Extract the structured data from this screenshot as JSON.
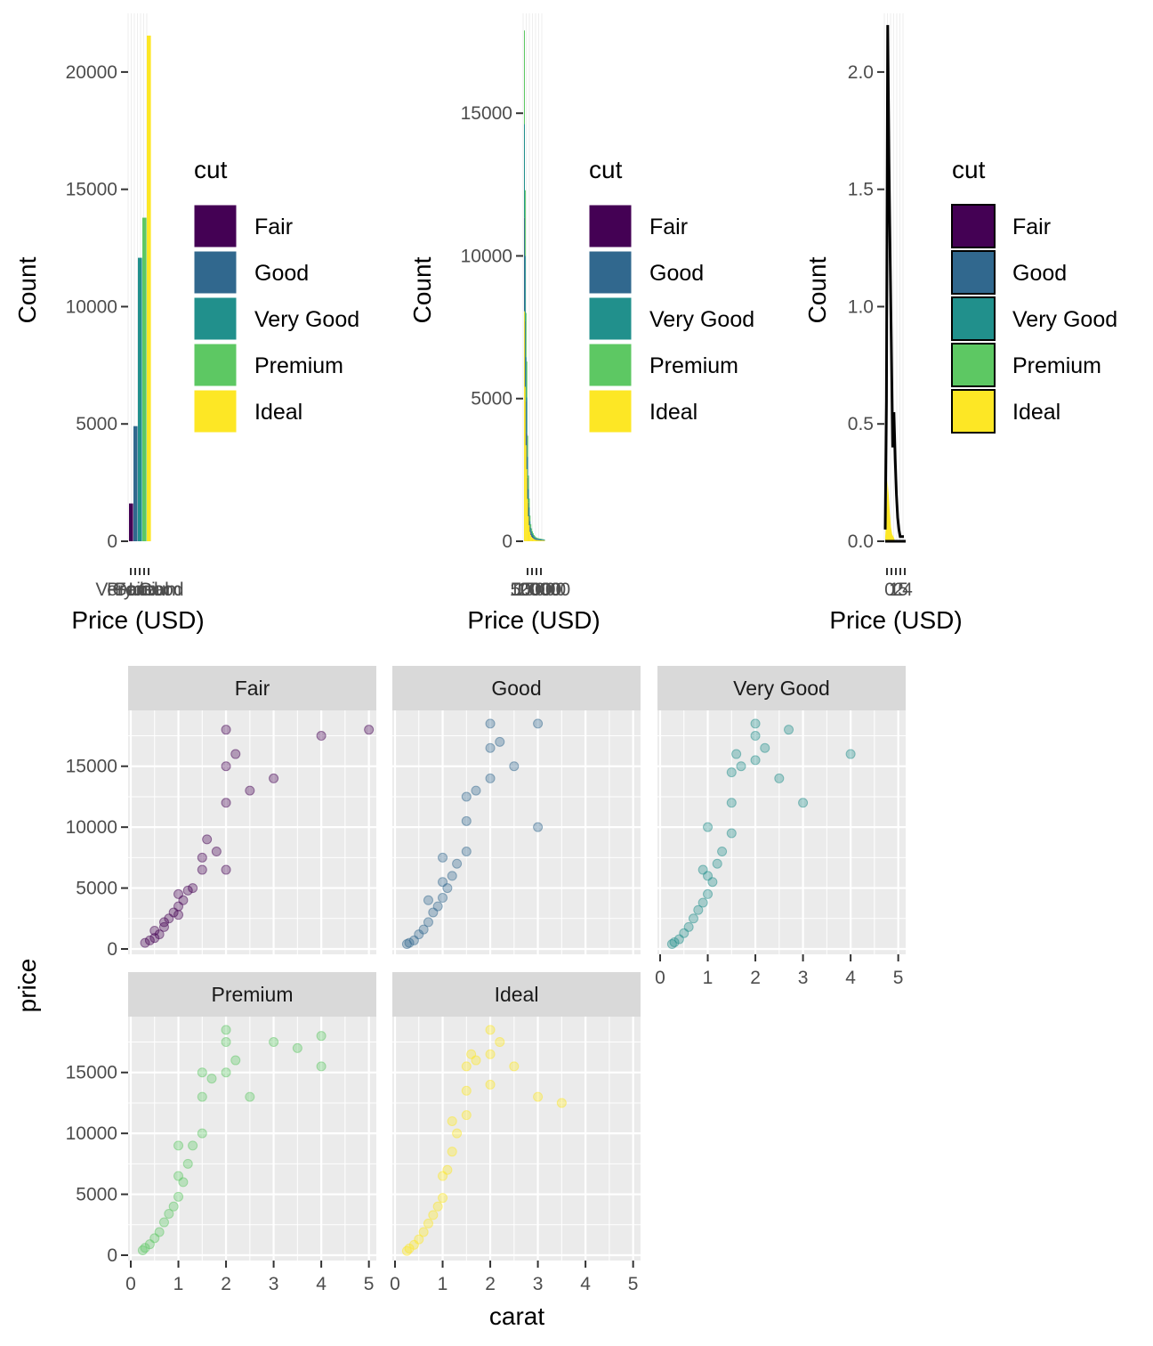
{
  "colors": {
    "Fair": "#440154",
    "Good": "#31688e",
    "Very Good": "#21908c",
    "Premium": "#5dc863",
    "Ideal": "#fde725",
    "panel_bg": "#ebebeb",
    "strip_bg": "#d9d9d9",
    "tick_text": "#4d4d4d"
  },
  "chart_data": [
    {
      "type": "bar",
      "xlabel": "Price (USD)",
      "ylabel": "Count",
      "legend_title": "cut",
      "legend_position": "right",
      "categories": [
        "Fair",
        "Good",
        "Very Good",
        "Premium",
        "Ideal"
      ],
      "values": [
        1610,
        4906,
        12082,
        13791,
        21551
      ],
      "x_tick_labels": [
        "Fair",
        "Good",
        "Very Good",
        "Premium",
        "Ideal"
      ],
      "ylim": [
        0,
        22500
      ],
      "y_ticks": [
        0,
        5000,
        10000,
        15000,
        20000
      ],
      "y_tick_labels": [
        "0",
        "5000",
        "10000",
        "15000",
        "20000"
      ],
      "grid": true
    },
    {
      "type": "bar",
      "subtype": "stacked-histogram",
      "xlabel": "Price (USD)",
      "ylabel": "Count",
      "legend_title": "cut",
      "legend_position": "right",
      "categories": [
        "Fair",
        "Good",
        "Very Good",
        "Premium",
        "Ideal"
      ],
      "x_tick_labels": [
        "5000",
        "10000",
        "15000",
        "20000"
      ],
      "ylim": [
        0,
        18500
      ],
      "y_ticks": [
        0,
        5000,
        10000,
        15000
      ],
      "y_tick_labels": [
        "0",
        "5000",
        "10000",
        "15000"
      ],
      "bins_total": [
        17900,
        12300,
        8000,
        6300,
        3700,
        2300,
        1500,
        900,
        600,
        450,
        350,
        280,
        220,
        180,
        150,
        130,
        120,
        110,
        100,
        95,
        90,
        85,
        80,
        75,
        70,
        65
      ],
      "ideal_share": [
        0.45,
        0.44,
        0.42,
        0.4,
        0.4,
        0.38,
        0.37,
        0.36,
        0.36,
        0.35,
        0.35,
        0.35,
        0.34,
        0.34,
        0.33,
        0.33,
        0.33,
        0.33,
        0.32,
        0.32,
        0.32,
        0.32,
        0.31,
        0.31,
        0.31,
        0.31
      ],
      "grid": true
    },
    {
      "type": "line",
      "subtype": "density",
      "xlabel": "Price (USD)",
      "ylabel": "Count",
      "legend_title": "cut",
      "legend_position": "right",
      "categories": [
        "Fair",
        "Good",
        "Very Good",
        "Premium",
        "Ideal"
      ],
      "x_tick_labels": [
        "0",
        "1",
        "2",
        "5",
        "4"
      ],
      "ylim": [
        0,
        2.25
      ],
      "y_ticks": [
        0,
        0.5,
        1.0,
        1.5,
        2.0
      ],
      "y_tick_labels": [
        "0.0",
        "0.5",
        "1.0",
        "1.5",
        "2.0"
      ],
      "outline_values": [
        0.05,
        0.6,
        2.2,
        1.62,
        1.2,
        0.8,
        0.4,
        0.55,
        0.35,
        0.2,
        0.1,
        0.05,
        0.02,
        0.02,
        0.02,
        0.02
      ],
      "ideal_values": [
        0.02,
        0.1,
        0.26,
        0.2,
        0.12,
        0.06,
        0.03,
        0.02,
        0.01
      ],
      "grid": true
    },
    {
      "type": "scatter",
      "faceted_by": "cut",
      "xlabel": "carat",
      "ylabel": "price",
      "xlim": [
        0,
        5.1
      ],
      "ylim": [
        0,
        19000
      ],
      "x_ticks": [
        0,
        1,
        2,
        3,
        4,
        5
      ],
      "x_tick_labels": [
        "0",
        "1",
        "2",
        "3",
        "4",
        "5"
      ],
      "y_ticks": [
        0,
        5000,
        10000,
        15000
      ],
      "y_tick_labels": [
        "0",
        "5000",
        "10000",
        "15000"
      ],
      "point_alpha": 0.1,
      "panels": [
        {
          "name": "Fair",
          "points": [
            [
              0.3,
              500
            ],
            [
              0.4,
              700
            ],
            [
              0.5,
              900
            ],
            [
              0.6,
              1200
            ],
            [
              0.7,
              1800
            ],
            [
              0.8,
              2500
            ],
            [
              0.9,
              3000
            ],
            [
              1.0,
              3500
            ],
            [
              1.0,
              4500
            ],
            [
              1.1,
              4000
            ],
            [
              1.2,
              4800
            ],
            [
              1.5,
              6500
            ],
            [
              1.5,
              7500
            ],
            [
              1.6,
              9000
            ],
            [
              2.0,
              12000
            ],
            [
              2.0,
              15000
            ],
            [
              2.0,
              18000
            ],
            [
              2.2,
              16000
            ],
            [
              2.5,
              13000
            ],
            [
              3.0,
              14000
            ],
            [
              4.0,
              17500
            ],
            [
              5.0,
              18000
            ],
            [
              0.5,
              1500
            ],
            [
              0.7,
              2200
            ],
            [
              1.0,
              2800
            ],
            [
              1.3,
              5000
            ],
            [
              1.8,
              8000
            ],
            [
              2.0,
              6500
            ]
          ]
        },
        {
          "name": "Good",
          "points": [
            [
              0.25,
              400
            ],
            [
              0.3,
              500
            ],
            [
              0.4,
              700
            ],
            [
              0.5,
              1200
            ],
            [
              0.6,
              1600
            ],
            [
              0.7,
              2200
            ],
            [
              0.8,
              3000
            ],
            [
              0.9,
              3500
            ],
            [
              1.0,
              4200
            ],
            [
              1.0,
              5500
            ],
            [
              1.1,
              5000
            ],
            [
              1.2,
              6000
            ],
            [
              1.3,
              7000
            ],
            [
              1.5,
              8000
            ],
            [
              1.5,
              10500
            ],
            [
              1.5,
              12500
            ],
            [
              1.7,
              13000
            ],
            [
              2.0,
              14000
            ],
            [
              2.0,
              16500
            ],
            [
              2.0,
              18500
            ],
            [
              2.2,
              17000
            ],
            [
              2.5,
              15000
            ],
            [
              3.0,
              18500
            ],
            [
              3.0,
              10000
            ],
            [
              0.7,
              4000
            ],
            [
              1.0,
              7500
            ]
          ]
        },
        {
          "name": "Very Good",
          "points": [
            [
              0.25,
              400
            ],
            [
              0.3,
              550
            ],
            [
              0.4,
              800
            ],
            [
              0.5,
              1300
            ],
            [
              0.6,
              1800
            ],
            [
              0.7,
              2500
            ],
            [
              0.8,
              3200
            ],
            [
              0.9,
              3800
            ],
            [
              1.0,
              4500
            ],
            [
              1.0,
              6000
            ],
            [
              1.1,
              5500
            ],
            [
              1.2,
              7000
            ],
            [
              1.3,
              8000
            ],
            [
              1.5,
              9500
            ],
            [
              1.5,
              12000
            ],
            [
              1.5,
              14500
            ],
            [
              1.6,
              16000
            ],
            [
              1.7,
              15000
            ],
            [
              2.0,
              15500
            ],
            [
              2.0,
              17500
            ],
            [
              2.0,
              18500
            ],
            [
              2.2,
              16500
            ],
            [
              2.5,
              14000
            ],
            [
              2.7,
              18000
            ],
            [
              3.0,
              12000
            ],
            [
              4.0,
              16000
            ],
            [
              1.0,
              10000
            ],
            [
              0.9,
              6500
            ]
          ]
        },
        {
          "name": "Premium",
          "points": [
            [
              0.25,
              400
            ],
            [
              0.3,
              600
            ],
            [
              0.4,
              900
            ],
            [
              0.5,
              1400
            ],
            [
              0.6,
              1900
            ],
            [
              0.7,
              2700
            ],
            [
              0.8,
              3400
            ],
            [
              0.9,
              4000
            ],
            [
              1.0,
              4800
            ],
            [
              1.0,
              6500
            ],
            [
              1.1,
              6000
            ],
            [
              1.2,
              7500
            ],
            [
              1.3,
              9000
            ],
            [
              1.5,
              10000
            ],
            [
              1.5,
              13000
            ],
            [
              1.5,
              15000
            ],
            [
              1.7,
              14500
            ],
            [
              2.0,
              15000
            ],
            [
              2.0,
              17500
            ],
            [
              2.0,
              18500
            ],
            [
              2.2,
              16000
            ],
            [
              2.5,
              13000
            ],
            [
              3.0,
              17500
            ],
            [
              3.5,
              17000
            ],
            [
              4.0,
              15500
            ],
            [
              4.0,
              18000
            ],
            [
              1.0,
              9000
            ]
          ]
        },
        {
          "name": "Ideal",
          "points": [
            [
              0.25,
              350
            ],
            [
              0.3,
              550
            ],
            [
              0.4,
              850
            ],
            [
              0.5,
              1300
            ],
            [
              0.6,
              1900
            ],
            [
              0.7,
              2600
            ],
            [
              0.8,
              3300
            ],
            [
              0.9,
              4000
            ],
            [
              1.0,
              4700
            ],
            [
              1.0,
              6500
            ],
            [
              1.1,
              7000
            ],
            [
              1.2,
              8500
            ],
            [
              1.3,
              10000
            ],
            [
              1.5,
              11500
            ],
            [
              1.5,
              13500
            ],
            [
              1.5,
              15500
            ],
            [
              1.6,
              16500
            ],
            [
              1.7,
              16000
            ],
            [
              2.0,
              14000
            ],
            [
              2.0,
              16500
            ],
            [
              2.0,
              18500
            ],
            [
              2.2,
              17500
            ],
            [
              2.5,
              15500
            ],
            [
              3.0,
              13000
            ],
            [
              3.5,
              12500
            ],
            [
              1.2,
              11000
            ]
          ]
        }
      ]
    }
  ]
}
